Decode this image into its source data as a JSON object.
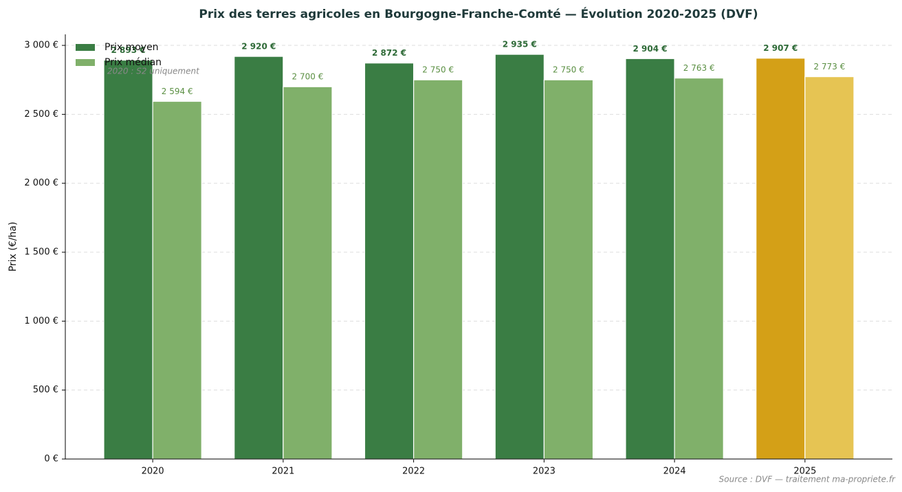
{
  "chart_data": {
    "type": "bar",
    "title": "Prix des terres agricoles en Bourgogne-Franche-Comté — Évolution 2020-2025 (DVF)",
    "y_label": "Prix (€/ha)",
    "annotation": "2020 : S2 uniquement",
    "source": "Source : DVF — traitement ma-propriete.fr",
    "categories": [
      "2020",
      "2021",
      "2022",
      "2023",
      "2024",
      "2025"
    ],
    "series": [
      {
        "name": "Prix moyen",
        "color": "#3a7d44",
        "colors": [
          "#3a7d44",
          "#3a7d44",
          "#3a7d44",
          "#3a7d44",
          "#3a7d44",
          "#d4a017"
        ],
        "values": [
          2893,
          2920,
          2872,
          2935,
          2904,
          2907
        ],
        "value_labels": [
          "2 893 €",
          "2 920 €",
          "2 872 €",
          "2 935 €",
          "2 904 €",
          "2 907 €"
        ]
      },
      {
        "name": "Prix médian",
        "color": "#80b06a",
        "colors": [
          "#80b06a",
          "#80b06a",
          "#80b06a",
          "#80b06a",
          "#80b06a",
          "#e6c453"
        ],
        "values": [
          2594,
          2700,
          2750,
          2750,
          2763,
          2773
        ],
        "value_labels": [
          "2 594 €",
          "2 700 €",
          "2 750 €",
          "2 750 €",
          "2 763 €",
          "2 773 €"
        ]
      }
    ],
    "ylim": [
      0,
      3080
    ],
    "yticks": [
      {
        "value": 0,
        "label": "0 €"
      },
      {
        "value": 500,
        "label": "500 €"
      },
      {
        "value": 1000,
        "label": "1 000 €"
      },
      {
        "value": 1500,
        "label": "1 500 €"
      },
      {
        "value": 2000,
        "label": "2 000 €"
      },
      {
        "value": 2500,
        "label": "2 500 €"
      },
      {
        "value": 3000,
        "label": "3 000 €"
      }
    ],
    "grid": true,
    "legend": "upper-left"
  }
}
